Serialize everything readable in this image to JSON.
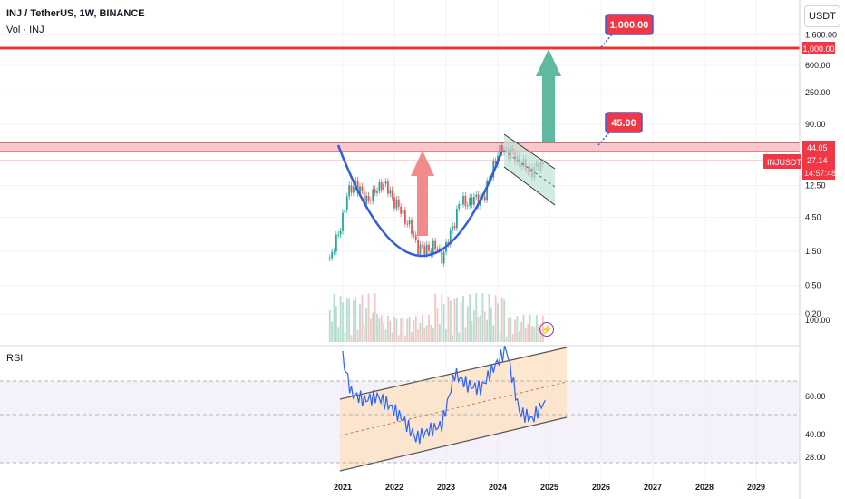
{
  "header": {
    "title": "INJ / TetherUS, 1W, BINANCE",
    "volume_label": "Vol · INJ",
    "currency": "USDT",
    "rsi_label": "RSI"
  },
  "colors": {
    "resistance_line": "#e53935",
    "resistance_band": "#f8c8cc",
    "cup_curve": "#2f5ee0",
    "up_arrow_red": "#f28b8b",
    "up_arrow_green": "#5fb8a0",
    "callout_fill": "#f23645",
    "callout_border": "#3b5bdb",
    "rsi_line": "#2962ff",
    "rsi_channel_fill": "#fde3c6",
    "rsi_band_fill": "#ede7f6",
    "volume_bar": "#b5dccc"
  },
  "icons": {
    "alert": "lightning-bolt-icon"
  },
  "chart_data": [
    {
      "type": "line",
      "subtype": "candlestick-approximation",
      "scale": "log",
      "series": [
        {
          "name": "INJUSDT",
          "x": [
            "2020-10",
            "2020-12",
            "2021-02",
            "2021-04",
            "2021-06",
            "2021-08",
            "2021-10",
            "2021-12",
            "2022-02",
            "2022-04",
            "2022-06",
            "2022-08",
            "2022-10",
            "2022-12",
            "2023-02",
            "2023-04",
            "2023-06",
            "2023-08",
            "2023-10",
            "2023-12",
            "2024-02",
            "2024-04",
            "2024-06",
            "2024-08",
            "2024-10",
            "2024-12"
          ],
          "values": [
            1.2,
            2.5,
            9,
            14,
            8,
            9,
            14,
            10,
            6,
            4,
            2,
            1.5,
            1.8,
            1.3,
            2.5,
            7,
            7.5,
            8,
            9,
            25,
            42,
            35,
            28,
            20,
            22,
            27
          ]
        }
      ],
      "y_ticks": [
        "1,600.00",
        "600.00",
        "250.00",
        "90.00",
        "12.50",
        "4.50",
        "1.50",
        "0.50",
        "0.20"
      ],
      "x_ticks": [
        "2021",
        "2022",
        "2023",
        "2024",
        "2025",
        "2026",
        "2027",
        "2028",
        "2029"
      ],
      "price_labels": {
        "target": "1,000.00",
        "resistance": "44.05",
        "last_symbol": "INJUSDT",
        "last_price": "27.14",
        "countdown": "14:57:48"
      },
      "annotations": [
        {
          "text": "1,000.00"
        },
        {
          "text": "45.00"
        }
      ],
      "legend": "none",
      "grid": true
    },
    {
      "type": "line",
      "name": "RSI",
      "x": [
        "2021-01",
        "2021-03",
        "2021-06",
        "2021-09",
        "2021-12",
        "2022-03",
        "2022-06",
        "2022-09",
        "2022-12",
        "2023-03",
        "2023-06",
        "2023-09",
        "2023-12",
        "2024-03",
        "2024-06",
        "2024-09",
        "2024-12"
      ],
      "values": [
        80,
        62,
        58,
        60,
        55,
        48,
        38,
        42,
        45,
        72,
        66,
        64,
        75,
        85,
        52,
        48,
        58
      ],
      "ylim": [
        28,
        100
      ],
      "y_ticks": [
        "100.00",
        "60.00",
        "40.00",
        "28.00"
      ],
      "grid": true
    }
  ]
}
